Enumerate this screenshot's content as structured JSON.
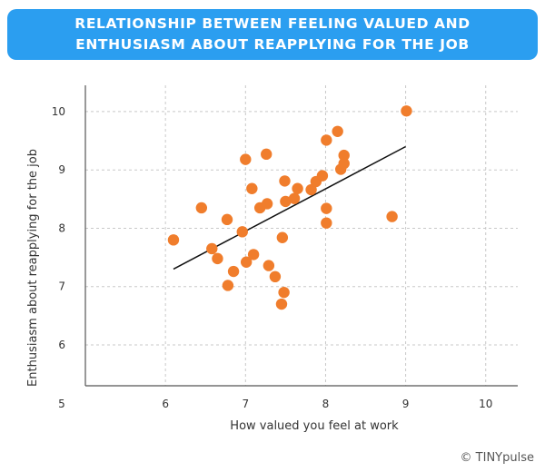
{
  "chart_data": {
    "type": "scatter",
    "title": "RELATIONSHIP BETWEEN FEELING VALUED AND\nENTHUSIASM ABOUT REAPPLYING FOR THE JOB",
    "xlabel": "How valued you feel at work",
    "ylabel": "Enthusiasm about reapplying for the job",
    "xlim": [
      5,
      10.4
    ],
    "ylim": [
      5.3,
      10.45
    ],
    "x_ticks": [
      5,
      6,
      7,
      8,
      9,
      10
    ],
    "y_ticks": [
      6,
      7,
      8,
      9,
      10
    ],
    "x_ticks_label": [
      "5",
      "6",
      "7",
      "8",
      "9",
      "10"
    ],
    "y_ticks_label": [
      "6",
      "7",
      "8",
      "9",
      "10"
    ],
    "grid": true,
    "point_color": "#f07d2c",
    "trendline": {
      "x": [
        6.1,
        9.0
      ],
      "y": [
        7.3,
        9.4
      ],
      "color": "#111111"
    },
    "points": [
      {
        "x": 6.1,
        "y": 7.8
      },
      {
        "x": 6.45,
        "y": 8.35
      },
      {
        "x": 6.58,
        "y": 7.65
      },
      {
        "x": 6.65,
        "y": 7.48
      },
      {
        "x": 6.77,
        "y": 8.15
      },
      {
        "x": 6.78,
        "y": 7.02
      },
      {
        "x": 6.85,
        "y": 7.26
      },
      {
        "x": 6.96,
        "y": 7.94
      },
      {
        "x": 7.0,
        "y": 9.18
      },
      {
        "x": 7.01,
        "y": 7.42
      },
      {
        "x": 7.08,
        "y": 8.68
      },
      {
        "x": 7.1,
        "y": 7.55
      },
      {
        "x": 7.18,
        "y": 8.35
      },
      {
        "x": 7.26,
        "y": 9.27
      },
      {
        "x": 7.27,
        "y": 8.42
      },
      {
        "x": 7.29,
        "y": 7.36
      },
      {
        "x": 7.37,
        "y": 7.17
      },
      {
        "x": 7.45,
        "y": 6.7
      },
      {
        "x": 7.46,
        "y": 7.84
      },
      {
        "x": 7.48,
        "y": 6.9
      },
      {
        "x": 7.49,
        "y": 8.81
      },
      {
        "x": 7.5,
        "y": 8.46
      },
      {
        "x": 7.61,
        "y": 8.51
      },
      {
        "x": 7.65,
        "y": 8.68
      },
      {
        "x": 7.82,
        "y": 8.66
      },
      {
        "x": 7.88,
        "y": 8.8
      },
      {
        "x": 7.96,
        "y": 8.9
      },
      {
        "x": 8.01,
        "y": 9.51
      },
      {
        "x": 8.01,
        "y": 8.34
      },
      {
        "x": 8.01,
        "y": 8.09
      },
      {
        "x": 8.15,
        "y": 9.66
      },
      {
        "x": 8.19,
        "y": 9.01
      },
      {
        "x": 8.23,
        "y": 9.25
      },
      {
        "x": 8.23,
        "y": 9.11
      },
      {
        "x": 8.83,
        "y": 8.2
      },
      {
        "x": 9.01,
        "y": 10.01
      }
    ]
  },
  "source_credit": "© TINYpulse"
}
